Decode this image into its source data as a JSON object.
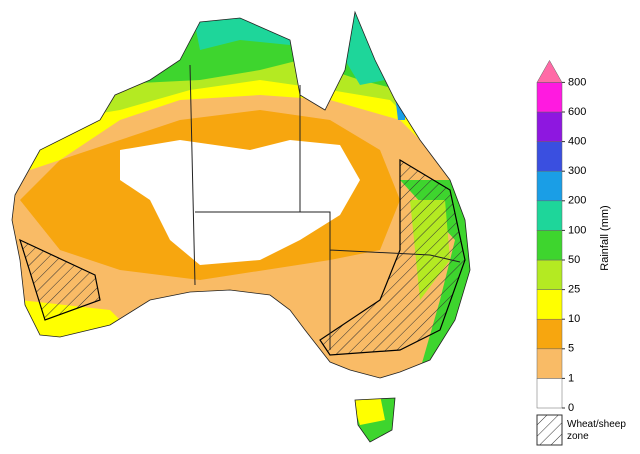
{
  "legend": {
    "title": "Rainfall (mm)",
    "ticks": [
      0,
      1,
      5,
      10,
      25,
      50,
      100,
      200,
      300,
      400,
      600,
      800
    ],
    "colors": [
      "#ffffff",
      "#f9bb66",
      "#f7a60f",
      "#ffff00",
      "#b4ea22",
      "#3ed52e",
      "#1ed69a",
      "#1a9ee6",
      "#3a4fe0",
      "#8e17e0",
      "#ff1ae0",
      "#ff6aa6"
    ],
    "hatch_label": "Wheat/sheep zone"
  }
}
